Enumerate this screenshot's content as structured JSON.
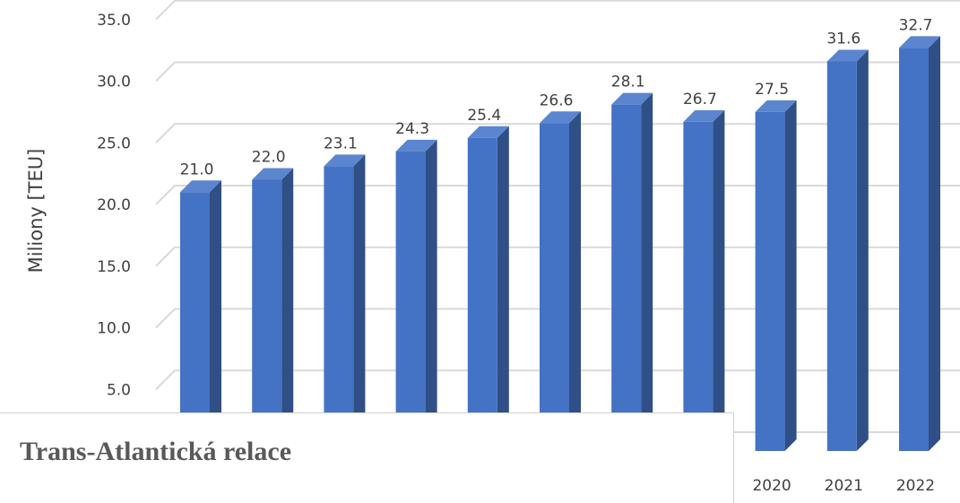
{
  "chart_data": {
    "type": "bar",
    "title": "",
    "ylabel": "Miliony [TEU]",
    "xlabel": "",
    "ylim": [
      0,
      35
    ],
    "y_ticks": [
      "5.0",
      "10.0",
      "15.0",
      "20.0",
      "25.0",
      "30.0",
      "35.0"
    ],
    "categories": [
      "",
      "",
      "",
      "",
      "",
      "",
      "",
      "",
      "2020",
      "2021",
      "2022"
    ],
    "values": [
      21.0,
      22.0,
      23.1,
      24.3,
      25.4,
      26.6,
      28.1,
      26.7,
      27.5,
      31.6,
      32.7
    ],
    "value_labels": [
      "21.0",
      "22.0",
      "23.1",
      "24.3",
      "25.4",
      "26.6",
      "28.1",
      "26.7",
      "27.5",
      "31.6",
      "32.7"
    ],
    "grid": true,
    "style": "3d-column",
    "colors": {
      "bar_front": "#4472C4",
      "bar_side": "#2F4F86",
      "bar_top": "#5B86CF",
      "grid": "#D9D9D9",
      "text": "#404040"
    }
  },
  "caption": "Trans-Atlantická relace"
}
